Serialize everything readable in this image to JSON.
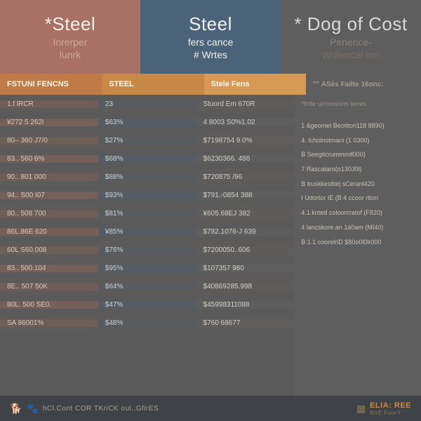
{
  "header": {
    "col1": {
      "title": "*Steel",
      "sub1": "Inrerper",
      "sub2": "lunrk",
      "bg": "#a97065"
    },
    "col2": {
      "title": "Steel",
      "sub1": "fers cance",
      "sub2": "# Wrtes",
      "bg": "#4a6378"
    },
    "col3": {
      "title": "* Dog of Cost",
      "sub1": "Penence-",
      "sub2": "Wolerrcal orn",
      "bg": "#5e5e5e"
    }
  },
  "subheader": {
    "c1": "FSTUNI FENCNS",
    "c2": "STEEL",
    "c3": "Stele Fens",
    "c4": "\"\"  ASés Failte 16onc:"
  },
  "table": {
    "columns": [
      "col1",
      "col2",
      "col3"
    ],
    "rows": [
      [
        "1.f lRCR",
        "23",
        "Stuord Em 670R"
      ],
      [
        "¥272 5 262l",
        "$63%",
        "4 8003 S0%1.02"
      ],
      [
        "80– 360 J7/0",
        "$27%",
        "$7198754 9.0%"
      ],
      [
        "83.. 560 6%",
        "$68%",
        "$6230366. 486"
      ],
      [
        "90.. 801 000",
        "$88%",
        "$720875 /96"
      ],
      [
        "94.. S00 I07",
        "$93%",
        "$791.-0854 388"
      ],
      [
        "80.. 508 700",
        "$81%",
        "¥605.68EJ 382"
      ],
      [
        "86L.86E 620",
        "¥85%",
        "$782.1076-J 639"
      ],
      [
        "60L S60.008",
        "$76%",
        "$7200050..606"
      ],
      [
        "83.. 500.104",
        "$95%",
        "$107357 980"
      ],
      [
        "8E.. 507 50K",
        "$64%",
        "$40869285.998"
      ],
      [
        "80L. 500 SE0.",
        "$47%",
        "$45998311088"
      ],
      [
        "SA 86001%",
        "$48%",
        "$760 68677"
      ]
    ],
    "row_alt_bg_even": true
  },
  "right": {
    "top": "*frdle    urrmnunrm terres",
    "items": [
      "1 &geomel Beotitori118 8890)",
      "4. Icholnotmani (1 0300)",
      "B Seegitcrummmif000)",
      "7 Rascataro(o130J0l)",
      "B truskkesttiej sCeranl420",
      "I Udortor IE (B 4 ccoor rtion",
      "4.1.knted coloorcratof (F820)",
      "4 lancskore an 1á0am (MI40)",
      "B 1.1 coorelriD $80o0l0lr000"
    ]
  },
  "footer": {
    "left_text": "hCl.Cont COR TKriCK oul..GfirES",
    "right_text": "ELIA: REE",
    "right_sub": "BIrE FoorY"
  },
  "colors": {
    "accent_orange": "#c98946",
    "footer_bg": "#3f4246",
    "panel_gray": "#5e5e5e"
  }
}
